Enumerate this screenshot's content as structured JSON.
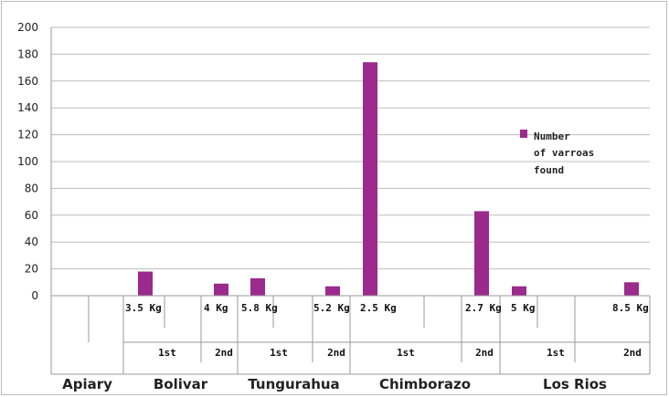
{
  "chart_data": {
    "type": "bar",
    "ylim": [
      0,
      200
    ],
    "yticks": [
      0,
      20,
      40,
      60,
      80,
      100,
      120,
      140,
      160,
      180,
      200
    ],
    "grid": true,
    "legend_position": "right",
    "color": "#9b2a8c",
    "series": [
      {
        "name": "Number of varroas found",
        "values": [
          18,
          9,
          13,
          7,
          174,
          63,
          7,
          10
        ]
      }
    ],
    "weights": [
      "3.5 Kg",
      "4 Kg",
      "5.8 Kg",
      "5.2 Kg",
      "2.5 Kg",
      "2.7 Kg",
      "5 Kg",
      "8.5 Kg"
    ],
    "rounds": [
      "1st",
      "2nd",
      "1st",
      "2nd",
      "1st",
      "2nd",
      "1st",
      "2nd"
    ],
    "regions": [
      "Apiary",
      "Bolivar",
      "Tungurahua",
      "Chimborazo",
      "Los Rios"
    ],
    "legend_lines": [
      "Number",
      "of varroas",
      "found"
    ]
  }
}
